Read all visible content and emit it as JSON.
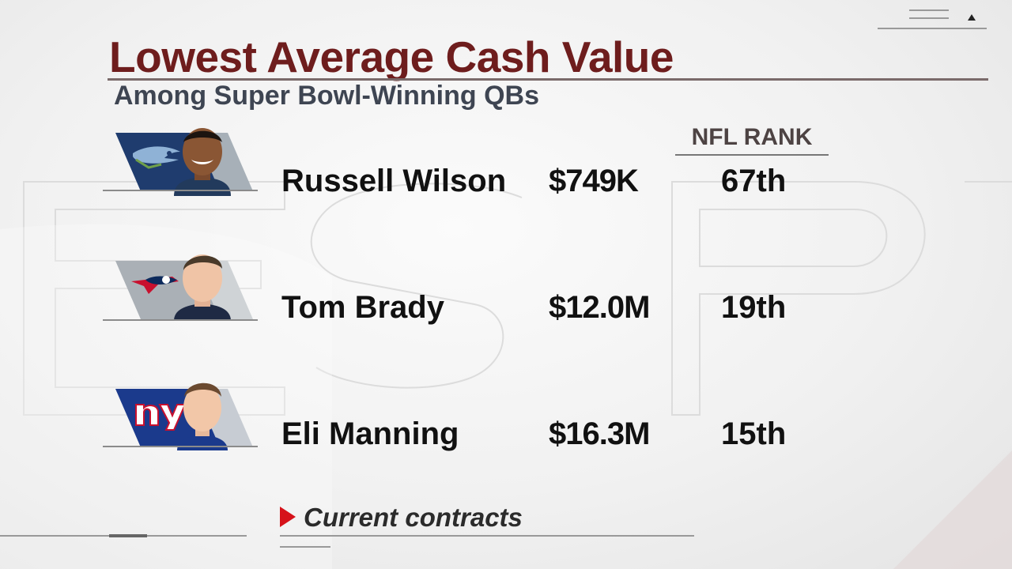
{
  "title": "Lowest Average Cash Value",
  "subtitle": "Among Super Bowl-Winning QBs",
  "rank_header": "NFL RANK",
  "players": [
    {
      "name": "Russell Wilson",
      "value": "$749K",
      "rank": "67th",
      "team_logo_icon": "seahawks-logo-icon",
      "team_color": "#1f3c6e"
    },
    {
      "name": "Tom Brady",
      "value": "$12.0M",
      "rank": "19th",
      "team_logo_icon": "patriots-logo-icon",
      "team_color": "#aab0b6"
    },
    {
      "name": "Eli Manning",
      "value": "$16.3M",
      "rank": "15th",
      "team_logo_icon": "giants-logo-icon",
      "team_color": "#1b3a8c",
      "logo_text": "ny"
    }
  ],
  "footnote": "Current contracts",
  "colors": {
    "title": "#6e1d1d",
    "subtitle": "#3e4552",
    "accent_marker": "#d6121a"
  }
}
